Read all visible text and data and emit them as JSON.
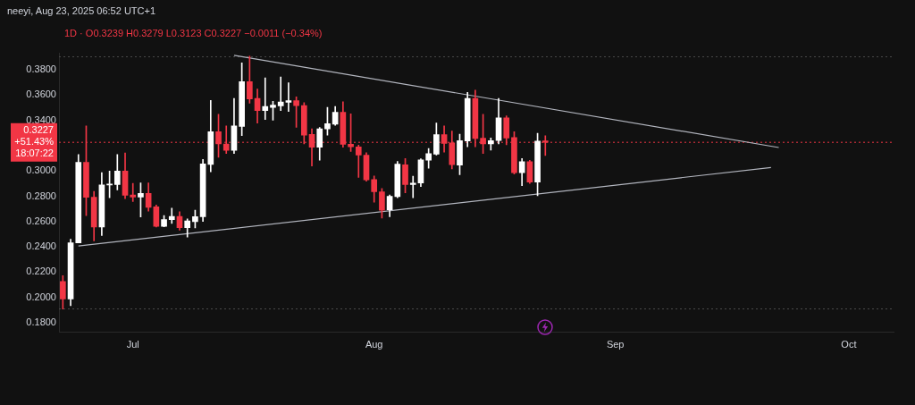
{
  "chart_data": {
    "type": "candlestick",
    "subtitle": "1D · O0.3239 H0.3279 L0.3123 C0.3227 −0.0011 (−0.34%)",
    "annotations": [
      "neeyi, Aug 23, 2025 06:52 UTC+1"
    ],
    "x": [
      "2025-06-22",
      "2025-06-23",
      "2025-06-24",
      "2025-06-25",
      "2025-06-26",
      "2025-06-27",
      "2025-06-28",
      "2025-06-29",
      "2025-06-30",
      "2025-07-01",
      "2025-07-02",
      "2025-07-03",
      "2025-07-04",
      "2025-07-05",
      "2025-07-06",
      "2025-07-07",
      "2025-07-08",
      "2025-07-09",
      "2025-07-10",
      "2025-07-11",
      "2025-07-12",
      "2025-07-13",
      "2025-07-14",
      "2025-07-15",
      "2025-07-16",
      "2025-07-17",
      "2025-07-18",
      "2025-07-19",
      "2025-07-20",
      "2025-07-21",
      "2025-07-22",
      "2025-07-23",
      "2025-07-24",
      "2025-07-25",
      "2025-07-26",
      "2025-07-27",
      "2025-07-28",
      "2025-07-29",
      "2025-07-30",
      "2025-07-31",
      "2025-08-01",
      "2025-08-02",
      "2025-08-03",
      "2025-08-04",
      "2025-08-05",
      "2025-08-06",
      "2025-08-07",
      "2025-08-08",
      "2025-08-09",
      "2025-08-10",
      "2025-08-11",
      "2025-08-12",
      "2025-08-13",
      "2025-08-14",
      "2025-08-15",
      "2025-08-16",
      "2025-08-17",
      "2025-08-18",
      "2025-08-19",
      "2025-08-20",
      "2025-08-21",
      "2025-08-22",
      "2025-08-23"
    ],
    "ohlc": [
      [
        0.2126,
        0.2172,
        0.1908,
        0.1989
      ],
      [
        0.1989,
        0.246,
        0.1936,
        0.2432
      ],
      [
        0.2432,
        0.3131,
        0.2432,
        0.3069
      ],
      [
        0.3069,
        0.3357,
        0.2648,
        0.2793
      ],
      [
        0.2793,
        0.2839,
        0.2448,
        0.2557
      ],
      [
        0.2557,
        0.2988,
        0.249,
        0.289
      ],
      [
        0.289,
        0.3,
        0.2788,
        0.2893
      ],
      [
        0.2893,
        0.3131,
        0.285,
        0.3
      ],
      [
        0.3,
        0.3143,
        0.2782,
        0.2809
      ],
      [
        0.2811,
        0.2903,
        0.2759,
        0.2795
      ],
      [
        0.2795,
        0.2906,
        0.2637,
        0.2823
      ],
      [
        0.2823,
        0.2906,
        0.2683,
        0.2712
      ],
      [
        0.2717,
        0.2731,
        0.2557,
        0.2563
      ],
      [
        0.2563,
        0.2648,
        0.2559,
        0.2616
      ],
      [
        0.2616,
        0.2706,
        0.2586,
        0.2641
      ],
      [
        0.2641,
        0.2678,
        0.2533,
        0.2552
      ],
      [
        0.2552,
        0.2621,
        0.2478,
        0.2605
      ],
      [
        0.26,
        0.269,
        0.255,
        0.2639
      ],
      [
        0.2639,
        0.3092,
        0.2602,
        0.3057
      ],
      [
        0.3053,
        0.3559,
        0.2993,
        0.331
      ],
      [
        0.331,
        0.3448,
        0.3108,
        0.3214
      ],
      [
        0.3214,
        0.3357,
        0.3138,
        0.3163
      ],
      [
        0.3163,
        0.3575,
        0.3138,
        0.3357
      ],
      [
        0.3352,
        0.3855,
        0.3281,
        0.3706
      ],
      [
        0.3706,
        0.3908,
        0.3536,
        0.357
      ],
      [
        0.3575,
        0.3648,
        0.3379,
        0.3478
      ],
      [
        0.3478,
        0.3736,
        0.3407,
        0.351
      ],
      [
        0.3503,
        0.3552,
        0.3402,
        0.3522
      ],
      [
        0.3515,
        0.3743,
        0.3478,
        0.3545
      ],
      [
        0.3543,
        0.3697,
        0.3471,
        0.3556
      ],
      [
        0.3556,
        0.3586,
        0.3345,
        0.3517
      ],
      [
        0.3517,
        0.354,
        0.3214,
        0.3283
      ],
      [
        0.329,
        0.3333,
        0.3039,
        0.3188
      ],
      [
        0.3188,
        0.3345,
        0.3085,
        0.3333
      ],
      [
        0.3333,
        0.3503,
        0.3283,
        0.3375
      ],
      [
        0.337,
        0.351,
        0.3361,
        0.3464
      ],
      [
        0.3464,
        0.3547,
        0.3188,
        0.3212
      ],
      [
        0.3212,
        0.3453,
        0.3154,
        0.3191
      ],
      [
        0.3191,
        0.3205,
        0.295,
        0.3126
      ],
      [
        0.3126,
        0.3144,
        0.292,
        0.2931
      ],
      [
        0.2933,
        0.2961,
        0.2754,
        0.2837
      ],
      [
        0.2835,
        0.2862,
        0.2628,
        0.269
      ],
      [
        0.2694,
        0.2811,
        0.2639,
        0.28
      ],
      [
        0.2798,
        0.3076,
        0.2788,
        0.3055
      ],
      [
        0.305,
        0.3099,
        0.2828,
        0.2893
      ],
      [
        0.2893,
        0.2959,
        0.2788,
        0.2905
      ],
      [
        0.2905,
        0.3097,
        0.2878,
        0.3088
      ],
      [
        0.3085,
        0.3179,
        0.3023,
        0.3138
      ],
      [
        0.3133,
        0.3379,
        0.3126,
        0.3288
      ],
      [
        0.3288,
        0.3357,
        0.315,
        0.3219
      ],
      [
        0.3223,
        0.3317,
        0.3016,
        0.305
      ],
      [
        0.3046,
        0.3292,
        0.297,
        0.3241
      ],
      [
        0.3237,
        0.3621,
        0.3191,
        0.3575
      ],
      [
        0.3575,
        0.3639,
        0.3191,
        0.3257
      ],
      [
        0.326,
        0.3448,
        0.3138,
        0.3214
      ],
      [
        0.3214,
        0.3262,
        0.3166,
        0.3241
      ],
      [
        0.3241,
        0.3575,
        0.3214,
        0.3421
      ],
      [
        0.3421,
        0.3437,
        0.3207,
        0.326
      ],
      [
        0.3264,
        0.331,
        0.2977,
        0.2986
      ],
      [
        0.2986,
        0.3099,
        0.2885,
        0.3074
      ],
      [
        0.3074,
        0.3085,
        0.2902,
        0.2913
      ],
      [
        0.2913,
        0.3299,
        0.2805,
        0.3237
      ],
      [
        0.3239,
        0.3279,
        0.3123,
        0.3227
      ]
    ],
    "colors": [
      "#f23645",
      "#ffffff",
      "#ffffff",
      "#f23645",
      "#f23645",
      "#ffffff",
      "#ffffff",
      "#ffffff",
      "#f23645",
      "#f23645",
      "#ffffff",
      "#f23645",
      "#f23645",
      "#ffffff",
      "#ffffff",
      "#f23645",
      "#ffffff",
      "#ffffff",
      "#ffffff",
      "#ffffff",
      "#f23645",
      "#f23645",
      "#ffffff",
      "#ffffff",
      "#f23645",
      "#f23645",
      "#ffffff",
      "#ffffff",
      "#ffffff",
      "#ffffff",
      "#f23645",
      "#f23645",
      "#f23645",
      "#ffffff",
      "#ffffff",
      "#ffffff",
      "#f23645",
      "#f23645",
      "#f23645",
      "#f23645",
      "#f23645",
      "#f23645",
      "#ffffff",
      "#ffffff",
      "#f23645",
      "#ffffff",
      "#ffffff",
      "#ffffff",
      "#ffffff",
      "#f23645",
      "#f23645",
      "#ffffff",
      "#ffffff",
      "#f23645",
      "#f23645",
      "#ffffff",
      "#ffffff",
      "#f23645",
      "#f23645",
      "#ffffff",
      "#f23645",
      "#ffffff",
      "#f23645"
    ],
    "series": [
      {
        "type": "line",
        "color": "#b2b5be",
        "x": [
          "2025-07-14",
          "2025-09-22"
        ],
        "values": [
          0.3915,
          0.3186
        ]
      },
      {
        "type": "line",
        "color": "#b2b5be",
        "x": [
          "2025-06-24",
          "2025-09-21"
        ],
        "values": [
          0.2407,
          0.3028
        ]
      }
    ],
    "ref_lines": [
      {
        "axis": "y",
        "value": 0.3227,
        "label": "0.3227 +51.43% 18:07:22",
        "color": "#f23645",
        "line_style": "dotted"
      },
      {
        "axis": "y",
        "value": 0.3903,
        "color": "#4a4a4a",
        "line_style": "dotted"
      },
      {
        "axis": "y",
        "value": 0.191,
        "color": "#4a4a4a",
        "line_style": "dotted"
      }
    ],
    "xlim": [
      "2025-06-21T12:00",
      "2025-10-06T18:00"
    ],
    "xticks": [
      {
        "value": "2025-07-01",
        "label": "Jul"
      },
      {
        "value": "2025-08-01",
        "label": "Aug"
      },
      {
        "value": "2025-09-01",
        "label": "Sep"
      },
      {
        "value": "2025-10-01",
        "label": "Oct"
      }
    ],
    "ylim": [
      0.1724,
      0.3931
    ],
    "yticks": [
      {
        "value": 0.18,
        "label": "0.1800"
      },
      {
        "value": 0.2,
        "label": "0.2000"
      },
      {
        "value": 0.22,
        "label": "0.2200"
      },
      {
        "value": 0.24,
        "label": "0.2400"
      },
      {
        "value": 0.26,
        "label": "0.2600"
      },
      {
        "value": 0.28,
        "label": "0.2800"
      },
      {
        "value": 0.3,
        "label": "0.3000"
      },
      {
        "value": 0.34,
        "label": "0.3400"
      },
      {
        "value": 0.36,
        "label": "0.3600"
      },
      {
        "value": 0.38,
        "label": "0.3800"
      }
    ]
  }
}
